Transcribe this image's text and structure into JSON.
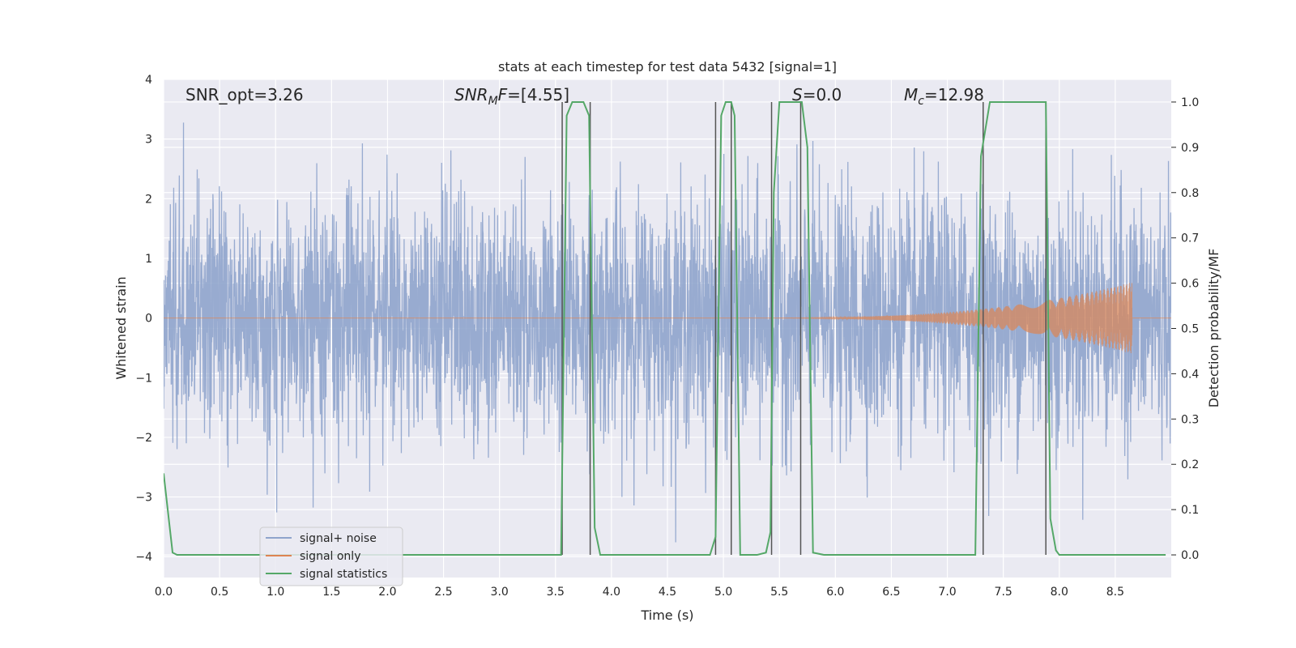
{
  "chart_data": {
    "type": "line",
    "title": "stats at each timestep for test data 5432 [signal=1]",
    "xlabel": "Time (s)",
    "ylabel_left": "Whitened strain",
    "ylabel_right": "Detection probability/MF",
    "xlim": [
      0.0,
      9.0
    ],
    "ylim_left": [
      -4.35,
      4.0
    ],
    "ylim_right": [
      -0.05,
      1.05
    ],
    "x_ticks": [
      0.0,
      0.5,
      1.0,
      1.5,
      2.0,
      2.5,
      3.0,
      3.5,
      4.0,
      4.5,
      5.0,
      5.5,
      6.0,
      6.5,
      7.0,
      7.5,
      8.0,
      8.5
    ],
    "x_tick_labels": [
      "0.0",
      "0.5",
      "1.0",
      "1.5",
      "2.0",
      "2.5",
      "3.0",
      "3.5",
      "4.0",
      "4.5",
      "5.0",
      "5.5",
      "6.0",
      "6.5",
      "7.0",
      "7.5",
      "8.0",
      "8.5"
    ],
    "y_left_ticks": [
      -4,
      -3,
      -2,
      -1,
      0,
      1,
      2,
      3,
      4
    ],
    "y_left_tick_labels": [
      "−4",
      "−3",
      "−2",
      "−1",
      "0",
      "1",
      "2",
      "3",
      "4"
    ],
    "y_right_ticks": [
      0.0,
      0.1,
      0.2,
      0.3,
      0.4,
      0.5,
      0.6,
      0.7,
      0.8,
      0.9,
      1.0
    ],
    "y_right_tick_labels": [
      "0.0",
      "0.1",
      "0.2",
      "0.3",
      "0.4",
      "0.5",
      "0.6",
      "0.7",
      "0.8",
      "0.9",
      "1.0"
    ],
    "grid": true,
    "legend_placement": "lower-left",
    "annotations": {
      "snr_opt": "SNR_opt=3.26",
      "snr_mf_main": "SNR",
      "snr_mf_sub": "M",
      "snr_mf_tail": "F",
      "snr_mf_value": "=[4.55]",
      "s_symbol": "S",
      "s_value": "=0.0",
      "mc_symbol": "M",
      "mc_sub": "c",
      "mc_value": "=12.98"
    },
    "series": [
      {
        "name": "signal+ noise",
        "color": "#8fa4cc",
        "axis": "left",
        "description_values": {
          "noise_std": 1.0,
          "clip_low": -4.0,
          "clip_high": 3.8
        }
      },
      {
        "name": "signal only",
        "color": "#dd8452",
        "axis": "left",
        "chirp": {
          "start": 5.0,
          "end": 8.65,
          "amp_end": 0.6
        }
      },
      {
        "name": "signal statistics",
        "color": "#55a868",
        "axis": "right",
        "x": [
          0.0,
          0.08,
          0.12,
          0.3,
          1.0,
          2.0,
          3.0,
          3.55,
          3.6,
          3.65,
          3.7,
          3.75,
          3.8,
          3.85,
          3.9,
          4.0,
          4.5,
          4.88,
          4.93,
          4.98,
          5.02,
          5.07,
          5.1,
          5.15,
          5.2,
          5.3,
          5.38,
          5.42,
          5.45,
          5.5,
          5.55,
          5.6,
          5.65,
          5.7,
          5.75,
          5.8,
          5.9,
          6.5,
          7.0,
          7.25,
          7.3,
          7.38,
          7.5,
          7.88,
          7.92,
          7.97,
          8.0,
          8.5,
          8.95
        ],
        "y": [
          0.18,
          0.005,
          0.0,
          0.0,
          0.0,
          0.0,
          0.0,
          0.0,
          0.97,
          1.0,
          1.0,
          1.0,
          0.97,
          0.06,
          0.0,
          0.0,
          0.0,
          0.0,
          0.04,
          0.97,
          1.0,
          1.0,
          0.97,
          0.0,
          0.0,
          0.0,
          0.005,
          0.05,
          0.8,
          1.0,
          1.0,
          1.0,
          1.0,
          1.0,
          0.9,
          0.005,
          0.0,
          0.0,
          0.0,
          0.0,
          0.88,
          1.0,
          1.0,
          1.0,
          0.08,
          0.01,
          0.0,
          0.0,
          0.0
        ]
      }
    ],
    "vertical_lines": [
      3.56,
      3.81,
      4.93,
      5.07,
      5.43,
      5.69,
      7.32,
      7.88
    ]
  }
}
